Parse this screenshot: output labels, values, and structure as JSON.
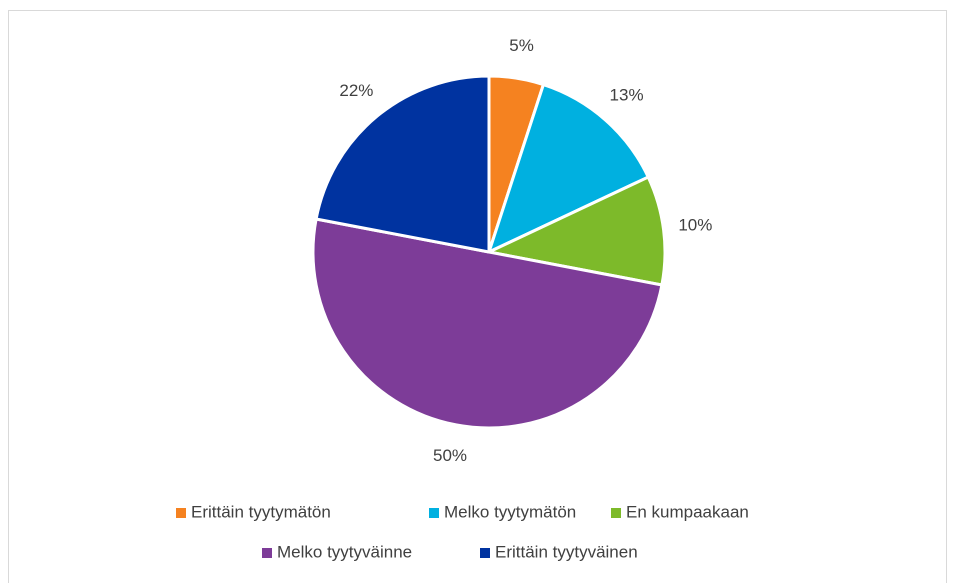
{
  "chart_data": {
    "type": "pie",
    "categories": [
      "Erittäin tyytymätön",
      "Melko tyytymätön",
      "En kumpaakaan",
      "Melko tyytyväinne",
      "Erittäin tyytyväinen"
    ],
    "values": [
      5,
      13,
      10,
      50,
      22
    ],
    "value_labels": [
      "5%",
      "13%",
      "10%",
      "50%",
      "22%"
    ],
    "colors": [
      "#f58220",
      "#00b0e0",
      "#7dba2a",
      "#7d3c98",
      "#0033a0"
    ],
    "legend": "bottom"
  }
}
